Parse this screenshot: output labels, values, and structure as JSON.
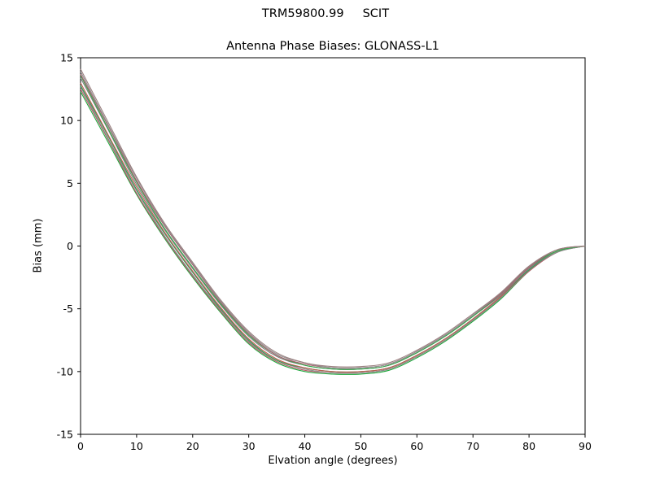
{
  "chart_data": {
    "type": "line",
    "suptitle": "TRM59800.99     SCIT",
    "title": "Antenna Phase Biases: GLONASS-L1",
    "xlabel": "Elvation angle (degrees)",
    "ylabel": "Bias (mm)",
    "xlim": [
      0,
      90
    ],
    "ylim": [
      -15,
      15
    ],
    "xticks": [
      0,
      10,
      20,
      30,
      40,
      50,
      60,
      70,
      80,
      90
    ],
    "yticks": [
      -15,
      -10,
      -5,
      0,
      5,
      10,
      15
    ],
    "grid": false,
    "legend": "none",
    "background": "#ffffff",
    "spine_color": "#000000",
    "x": [
      0,
      5,
      10,
      15,
      20,
      25,
      30,
      35,
      40,
      45,
      50,
      55,
      60,
      65,
      70,
      75,
      80,
      85,
      90
    ],
    "series": [
      {
        "name": "line-01",
        "color": "#1fa83d",
        "values": [
          12.3,
          8.2,
          4.1,
          0.6,
          -2.5,
          -5.3,
          -7.8,
          -9.3,
          -10.0,
          -10.2,
          -10.2,
          -9.9,
          -8.9,
          -7.6,
          -6.0,
          -4.2,
          -2.0,
          -0.5,
          0.0
        ]
      },
      {
        "name": "line-02",
        "color": "#b65c6a",
        "values": [
          12.5,
          8.4,
          4.2,
          0.7,
          -2.4,
          -5.2,
          -7.7,
          -9.2,
          -9.9,
          -10.1,
          -10.1,
          -9.8,
          -8.8,
          -7.5,
          -5.9,
          -4.1,
          -2.0,
          -0.5,
          0.0
        ]
      },
      {
        "name": "line-03",
        "color": "#8a8a8a",
        "values": [
          12.7,
          8.5,
          4.4,
          0.8,
          -2.3,
          -5.1,
          -7.6,
          -9.1,
          -9.8,
          -10.1,
          -10.1,
          -9.8,
          -8.8,
          -7.5,
          -5.9,
          -4.1,
          -1.9,
          -0.5,
          0.0
        ]
      },
      {
        "name": "line-04",
        "color": "#2e9e57",
        "values": [
          12.8,
          8.7,
          4.5,
          1.0,
          -2.1,
          -5.0,
          -7.5,
          -9.1,
          -9.7,
          -10.0,
          -10.0,
          -9.7,
          -8.7,
          -7.4,
          -5.8,
          -4.0,
          -1.9,
          -0.4,
          0.0
        ]
      },
      {
        "name": "line-05",
        "color": "#c05b50",
        "values": [
          13.0,
          8.8,
          4.7,
          1.1,
          -2.0,
          -4.9,
          -7.4,
          -9.0,
          -9.7,
          -10.0,
          -10.0,
          -9.7,
          -8.7,
          -7.4,
          -5.8,
          -4.0,
          -1.8,
          -0.4,
          0.0
        ]
      },
      {
        "name": "line-06",
        "color": "#7d7d7d",
        "values": [
          13.4,
          9.2,
          4.9,
          1.3,
          -1.8,
          -4.7,
          -7.2,
          -8.8,
          -9.5,
          -9.8,
          -9.8,
          -9.5,
          -8.5,
          -7.2,
          -5.6,
          -3.9,
          -1.8,
          -0.4,
          0.0
        ]
      },
      {
        "name": "line-07",
        "color": "#35a84c",
        "values": [
          13.6,
          9.3,
          5.1,
          1.4,
          -1.7,
          -4.6,
          -7.1,
          -8.7,
          -9.5,
          -9.8,
          -9.8,
          -9.5,
          -8.5,
          -7.2,
          -5.6,
          -3.8,
          -1.7,
          -0.4,
          0.0
        ]
      },
      {
        "name": "line-08",
        "color": "#a95e6e",
        "values": [
          13.7,
          9.5,
          5.2,
          1.6,
          -1.5,
          -4.5,
          -7.0,
          -8.7,
          -9.4,
          -9.7,
          -9.7,
          -9.4,
          -8.4,
          -7.1,
          -5.5,
          -3.8,
          -1.7,
          -0.3,
          0.0
        ]
      },
      {
        "name": "line-09",
        "color": "#909090",
        "values": [
          13.9,
          9.6,
          5.4,
          1.7,
          -1.4,
          -4.4,
          -6.9,
          -8.6,
          -9.3,
          -9.7,
          -9.7,
          -9.4,
          -8.4,
          -7.1,
          -5.5,
          -3.7,
          -1.6,
          -0.3,
          0.0
        ]
      },
      {
        "name": "line-10",
        "color": "#9b8080",
        "values": [
          14.1,
          9.8,
          5.5,
          1.8,
          -1.3,
          -4.3,
          -6.8,
          -8.5,
          -9.3,
          -9.6,
          -9.6,
          -9.3,
          -8.3,
          -7.0,
          -5.4,
          -3.7,
          -1.6,
          -0.3,
          0.0
        ]
      }
    ]
  }
}
